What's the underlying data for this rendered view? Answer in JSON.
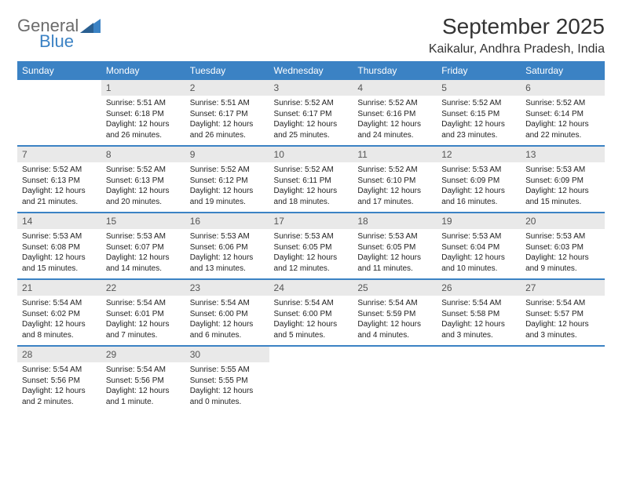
{
  "logo": {
    "word1": "General",
    "word2": "Blue"
  },
  "title": "September 2025",
  "location": "Kaikalur, Andhra Pradesh, India",
  "day_headers": [
    "Sunday",
    "Monday",
    "Tuesday",
    "Wednesday",
    "Thursday",
    "Friday",
    "Saturday"
  ],
  "colors": {
    "header_bg": "#3b82c4",
    "daynum_bg": "#e9e9e9",
    "row_border": "#3b82c4",
    "logo_gray": "#6b6b6b",
    "logo_blue": "#3b82c4",
    "text": "#222222",
    "background": "#ffffff"
  },
  "typography": {
    "title_fontsize": 28,
    "location_fontsize": 16,
    "header_fontsize": 12,
    "daynum_fontsize": 12,
    "body_fontsize": 10
  },
  "calendar": {
    "type": "table",
    "columns": 7,
    "rows": 5,
    "start_offset": 1,
    "days": [
      {
        "n": "1",
        "sunrise": "Sunrise: 5:51 AM",
        "sunset": "Sunset: 6:18 PM",
        "daylight": "Daylight: 12 hours and 26 minutes."
      },
      {
        "n": "2",
        "sunrise": "Sunrise: 5:51 AM",
        "sunset": "Sunset: 6:17 PM",
        "daylight": "Daylight: 12 hours and 26 minutes."
      },
      {
        "n": "3",
        "sunrise": "Sunrise: 5:52 AM",
        "sunset": "Sunset: 6:17 PM",
        "daylight": "Daylight: 12 hours and 25 minutes."
      },
      {
        "n": "4",
        "sunrise": "Sunrise: 5:52 AM",
        "sunset": "Sunset: 6:16 PM",
        "daylight": "Daylight: 12 hours and 24 minutes."
      },
      {
        "n": "5",
        "sunrise": "Sunrise: 5:52 AM",
        "sunset": "Sunset: 6:15 PM",
        "daylight": "Daylight: 12 hours and 23 minutes."
      },
      {
        "n": "6",
        "sunrise": "Sunrise: 5:52 AM",
        "sunset": "Sunset: 6:14 PM",
        "daylight": "Daylight: 12 hours and 22 minutes."
      },
      {
        "n": "7",
        "sunrise": "Sunrise: 5:52 AM",
        "sunset": "Sunset: 6:13 PM",
        "daylight": "Daylight: 12 hours and 21 minutes."
      },
      {
        "n": "8",
        "sunrise": "Sunrise: 5:52 AM",
        "sunset": "Sunset: 6:13 PM",
        "daylight": "Daylight: 12 hours and 20 minutes."
      },
      {
        "n": "9",
        "sunrise": "Sunrise: 5:52 AM",
        "sunset": "Sunset: 6:12 PM",
        "daylight": "Daylight: 12 hours and 19 minutes."
      },
      {
        "n": "10",
        "sunrise": "Sunrise: 5:52 AM",
        "sunset": "Sunset: 6:11 PM",
        "daylight": "Daylight: 12 hours and 18 minutes."
      },
      {
        "n": "11",
        "sunrise": "Sunrise: 5:52 AM",
        "sunset": "Sunset: 6:10 PM",
        "daylight": "Daylight: 12 hours and 17 minutes."
      },
      {
        "n": "12",
        "sunrise": "Sunrise: 5:53 AM",
        "sunset": "Sunset: 6:09 PM",
        "daylight": "Daylight: 12 hours and 16 minutes."
      },
      {
        "n": "13",
        "sunrise": "Sunrise: 5:53 AM",
        "sunset": "Sunset: 6:09 PM",
        "daylight": "Daylight: 12 hours and 15 minutes."
      },
      {
        "n": "14",
        "sunrise": "Sunrise: 5:53 AM",
        "sunset": "Sunset: 6:08 PM",
        "daylight": "Daylight: 12 hours and 15 minutes."
      },
      {
        "n": "15",
        "sunrise": "Sunrise: 5:53 AM",
        "sunset": "Sunset: 6:07 PM",
        "daylight": "Daylight: 12 hours and 14 minutes."
      },
      {
        "n": "16",
        "sunrise": "Sunrise: 5:53 AM",
        "sunset": "Sunset: 6:06 PM",
        "daylight": "Daylight: 12 hours and 13 minutes."
      },
      {
        "n": "17",
        "sunrise": "Sunrise: 5:53 AM",
        "sunset": "Sunset: 6:05 PM",
        "daylight": "Daylight: 12 hours and 12 minutes."
      },
      {
        "n": "18",
        "sunrise": "Sunrise: 5:53 AM",
        "sunset": "Sunset: 6:05 PM",
        "daylight": "Daylight: 12 hours and 11 minutes."
      },
      {
        "n": "19",
        "sunrise": "Sunrise: 5:53 AM",
        "sunset": "Sunset: 6:04 PM",
        "daylight": "Daylight: 12 hours and 10 minutes."
      },
      {
        "n": "20",
        "sunrise": "Sunrise: 5:53 AM",
        "sunset": "Sunset: 6:03 PM",
        "daylight": "Daylight: 12 hours and 9 minutes."
      },
      {
        "n": "21",
        "sunrise": "Sunrise: 5:54 AM",
        "sunset": "Sunset: 6:02 PM",
        "daylight": "Daylight: 12 hours and 8 minutes."
      },
      {
        "n": "22",
        "sunrise": "Sunrise: 5:54 AM",
        "sunset": "Sunset: 6:01 PM",
        "daylight": "Daylight: 12 hours and 7 minutes."
      },
      {
        "n": "23",
        "sunrise": "Sunrise: 5:54 AM",
        "sunset": "Sunset: 6:00 PM",
        "daylight": "Daylight: 12 hours and 6 minutes."
      },
      {
        "n": "24",
        "sunrise": "Sunrise: 5:54 AM",
        "sunset": "Sunset: 6:00 PM",
        "daylight": "Daylight: 12 hours and 5 minutes."
      },
      {
        "n": "25",
        "sunrise": "Sunrise: 5:54 AM",
        "sunset": "Sunset: 5:59 PM",
        "daylight": "Daylight: 12 hours and 4 minutes."
      },
      {
        "n": "26",
        "sunrise": "Sunrise: 5:54 AM",
        "sunset": "Sunset: 5:58 PM",
        "daylight": "Daylight: 12 hours and 3 minutes."
      },
      {
        "n": "27",
        "sunrise": "Sunrise: 5:54 AM",
        "sunset": "Sunset: 5:57 PM",
        "daylight": "Daylight: 12 hours and 3 minutes."
      },
      {
        "n": "28",
        "sunrise": "Sunrise: 5:54 AM",
        "sunset": "Sunset: 5:56 PM",
        "daylight": "Daylight: 12 hours and 2 minutes."
      },
      {
        "n": "29",
        "sunrise": "Sunrise: 5:54 AM",
        "sunset": "Sunset: 5:56 PM",
        "daylight": "Daylight: 12 hours and 1 minute."
      },
      {
        "n": "30",
        "sunrise": "Sunrise: 5:55 AM",
        "sunset": "Sunset: 5:55 PM",
        "daylight": "Daylight: 12 hours and 0 minutes."
      }
    ]
  }
}
